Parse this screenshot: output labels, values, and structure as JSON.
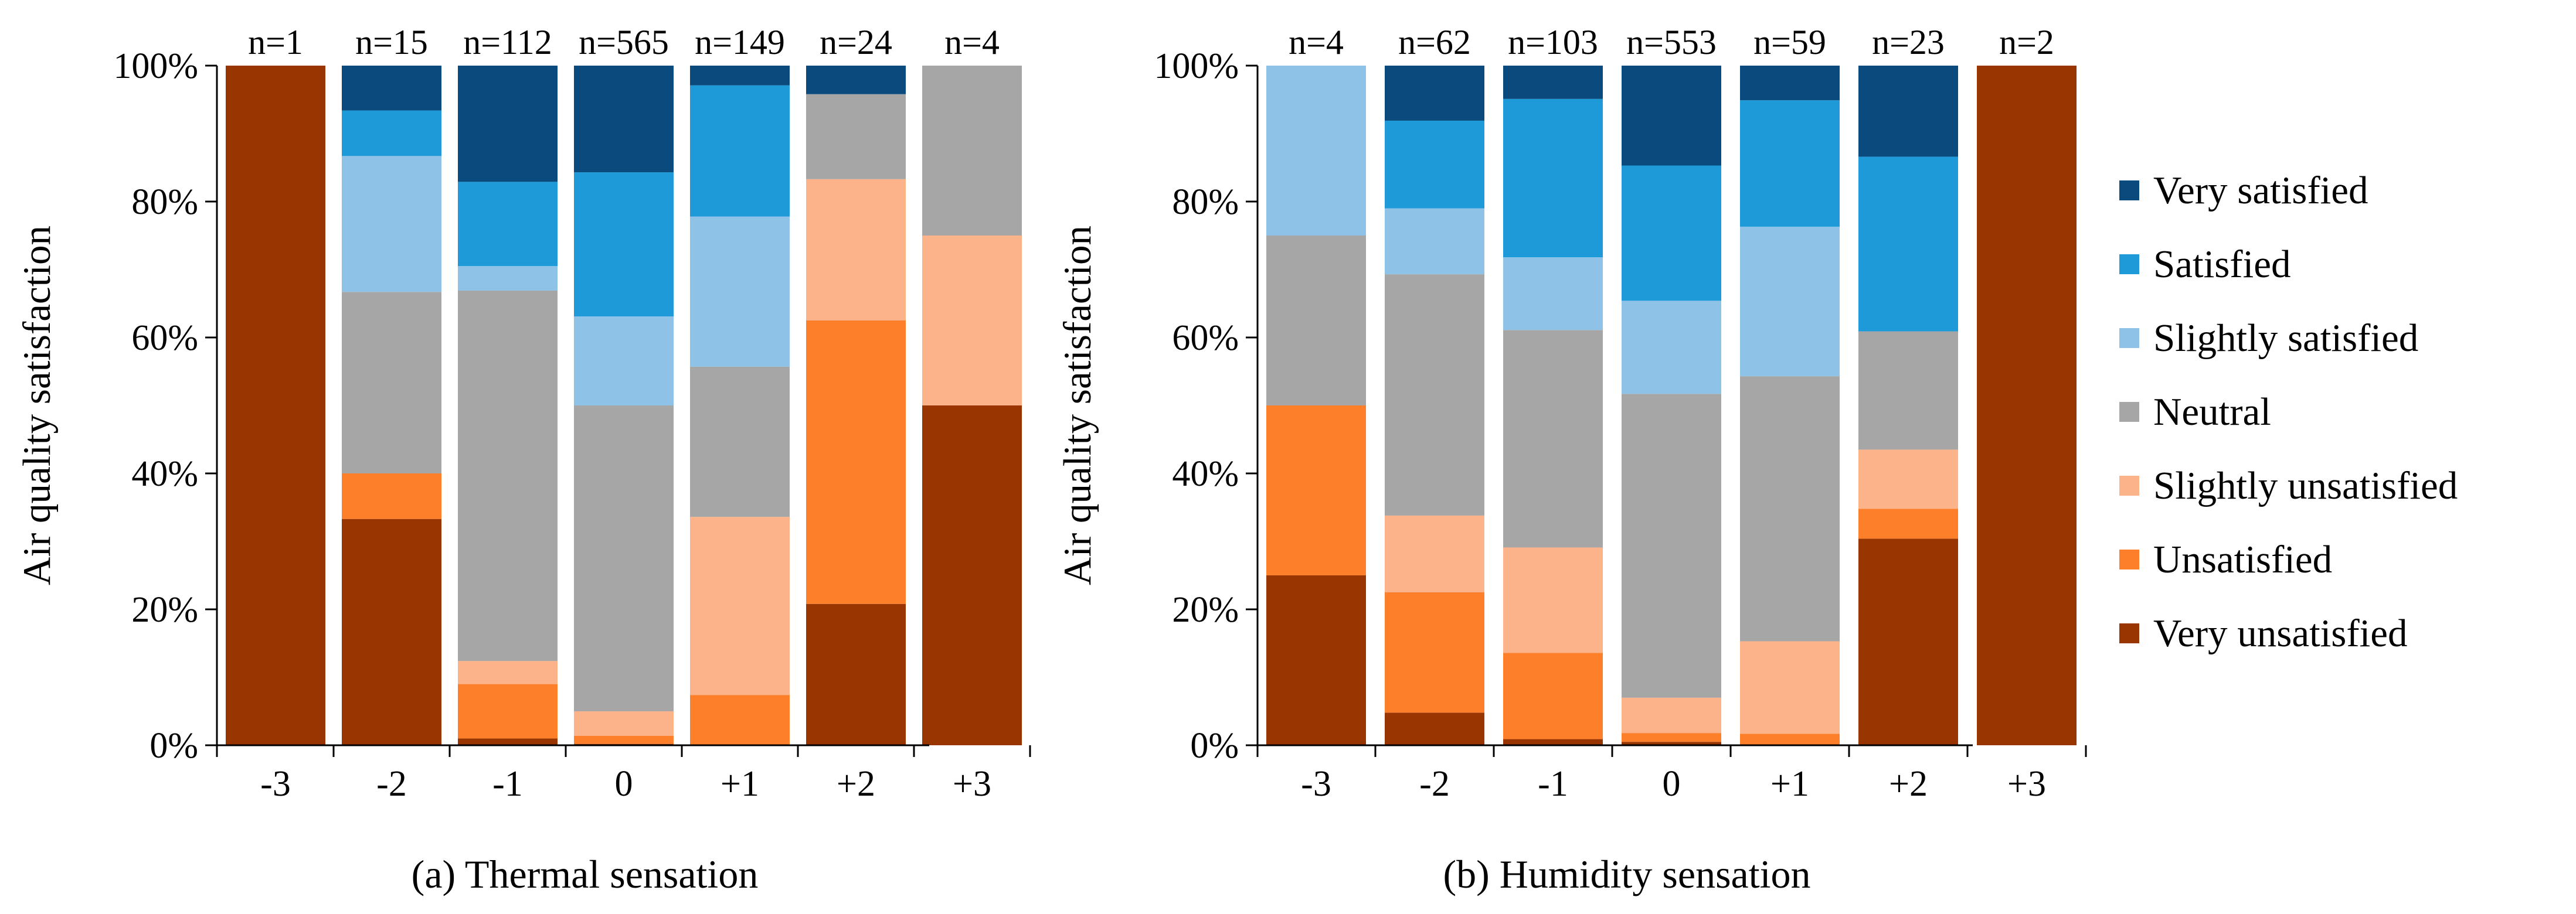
{
  "chart_data": [
    {
      "type": "stacked_bar",
      "title": "(a) Thermal sensation",
      "ylabel": "Air quality satisfaction",
      "ylim": [
        0,
        100
      ],
      "yticks": [
        "0%",
        "20%",
        "40%",
        "60%",
        "80%",
        "100%"
      ],
      "categories": [
        "-3",
        "-2",
        "-1",
        "0",
        "+1",
        "+2",
        "+3"
      ],
      "counts": [
        "n=1",
        "n=15",
        "n=112",
        "n=565",
        "n=149",
        "n=24",
        "n=4"
      ],
      "series": [
        {
          "name": "Very unsatisfied",
          "values": [
            100,
            33.3,
            1.0,
            0.2,
            0,
            20.8,
            50
          ]
        },
        {
          "name": "Unsatisfied",
          "values": [
            0,
            6.7,
            8.0,
            1.2,
            7.4,
            41.7,
            0
          ]
        },
        {
          "name": "Slightly unsatisfied",
          "values": [
            0,
            0,
            3.4,
            3.6,
            26.2,
            20.8,
            25
          ]
        },
        {
          "name": "Neutral",
          "values": [
            0,
            26.7,
            54.5,
            45.0,
            22.1,
            12.5,
            25
          ]
        },
        {
          "name": "Slightly satisfied",
          "values": [
            0,
            20.0,
            3.6,
            13.1,
            22.1,
            0,
            0
          ]
        },
        {
          "name": "Satisfied",
          "values": [
            0,
            6.7,
            12.4,
            21.2,
            19.3,
            0,
            0
          ]
        },
        {
          "name": "Very satisfied",
          "values": [
            0,
            6.6,
            17.1,
            15.7,
            2.9,
            4.2,
            0
          ]
        }
      ]
    },
    {
      "type": "stacked_bar",
      "title": "(b) Humidity sensation",
      "ylabel": "Air quality satisfaction",
      "ylim": [
        0,
        100
      ],
      "yticks": [
        "0%",
        "20%",
        "40%",
        "60%",
        "80%",
        "100%"
      ],
      "categories": [
        "-3",
        "-2",
        "-1",
        "0",
        "+1",
        "+2",
        "+3"
      ],
      "counts": [
        "n=4",
        "n=62",
        "n=103",
        "n=553",
        "n=59",
        "n=23",
        "n=2"
      ],
      "series": [
        {
          "name": "Very unsatisfied",
          "values": [
            25,
            4.8,
            0.9,
            0.5,
            0,
            30.4,
            100
          ]
        },
        {
          "name": "Unsatisfied",
          "values": [
            25,
            17.7,
            12.7,
            1.3,
            1.7,
            4.4,
            0
          ]
        },
        {
          "name": "Slightly unsatisfied",
          "values": [
            0,
            11.3,
            15.5,
            5.2,
            13.6,
            8.7,
            0
          ]
        },
        {
          "name": "Neutral",
          "values": [
            25,
            35.5,
            32.0,
            44.7,
            39.0,
            17.4,
            0
          ]
        },
        {
          "name": "Slightly satisfied",
          "values": [
            25,
            9.7,
            10.7,
            13.7,
            22.0,
            0,
            0
          ]
        },
        {
          "name": "Satisfied",
          "values": [
            0,
            12.9,
            23.3,
            19.9,
            18.6,
            25.7,
            0
          ]
        },
        {
          "name": "Very satisfied",
          "values": [
            0,
            8.1,
            4.9,
            14.7,
            5.1,
            13.4,
            0
          ]
        }
      ]
    }
  ],
  "legend": {
    "items": [
      {
        "label": "Very satisfied",
        "color": "#0b4a7d"
      },
      {
        "label": "Satisfied",
        "color": "#1f9ad9"
      },
      {
        "label": "Slightly satisfied",
        "color": "#8ec3e7"
      },
      {
        "label": "Neutral",
        "color": "#a6a6a6"
      },
      {
        "label": "Slightly unsatisfied",
        "color": "#fcb38a"
      },
      {
        "label": "Unsatisfied",
        "color": "#fd7f2a"
      },
      {
        "label": "Very unsatisfied",
        "color": "#983500"
      }
    ]
  }
}
